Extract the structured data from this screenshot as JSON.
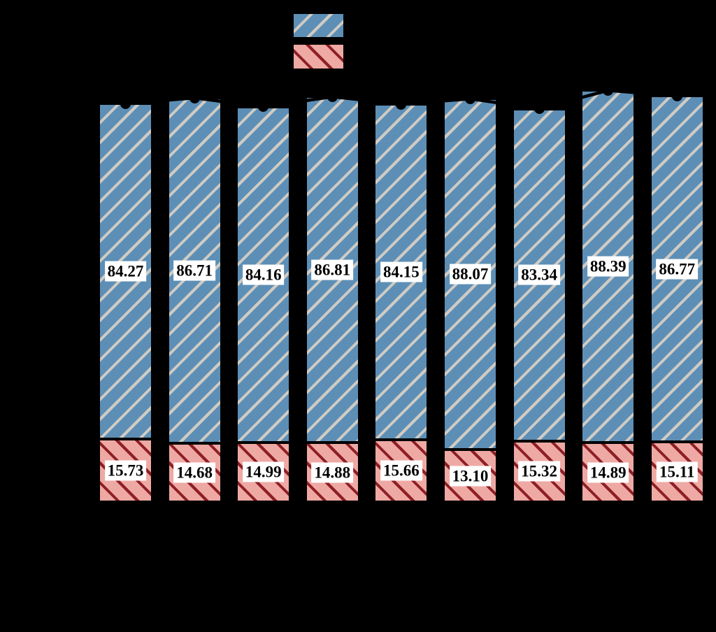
{
  "figure": {
    "background_color": "#000000",
    "axis_text_visible": false,
    "note_visible_elements": "bars, hatched legend swatches, value labels, black top markers and connecting line"
  },
  "legend": {
    "items": [
      {
        "name": "blue-hatched-series",
        "fill": "#5d8fb6",
        "hatch": "/",
        "hatch_color": "#cfcbc4",
        "label_text_visible": false
      },
      {
        "name": "red-hatched-series",
        "fill": "#eea9a4",
        "hatch": "\\",
        "hatch_color": "#8e1f24",
        "label_text_visible": false
      }
    ]
  },
  "chart_data": {
    "type": "bar",
    "stacked": true,
    "bar_count": 9,
    "x_tick_labels_visible": false,
    "categories": [
      "",
      "",
      "",
      "",
      "",
      "",
      "",
      "",
      ""
    ],
    "series": [
      {
        "name": "red-hatched-bottom-segment",
        "fill": "#eea9a4",
        "hatch": "\\",
        "hatch_color": "#8e1f24",
        "values": [
          15.73,
          14.68,
          14.99,
          14.88,
          15.66,
          13.1,
          15.32,
          14.89,
          15.11
        ]
      },
      {
        "name": "blue-hatched-top-segment",
        "fill": "#5d8fb6",
        "hatch": "/",
        "hatch_color": "#cfcbc4",
        "values": [
          84.27,
          86.71,
          84.16,
          86.81,
          84.15,
          88.07,
          83.34,
          88.39,
          86.77
        ]
      }
    ],
    "stack_totals": [
      100.0,
      101.39,
      99.15,
      101.69,
      99.81,
      101.17,
      98.66,
      103.28,
      101.88
    ],
    "value_label_format": "0.00",
    "value_label_style": {
      "text_color": "#000000",
      "box_color": "#ffffff",
      "bold": true
    },
    "markers_at_stack_top": {
      "shape": "circle",
      "color": "#000000"
    },
    "line_connecting_tops": {
      "color": "#000000"
    },
    "ylim": [
      0,
      106
    ],
    "grid": false,
    "legend_position": "top-center"
  }
}
